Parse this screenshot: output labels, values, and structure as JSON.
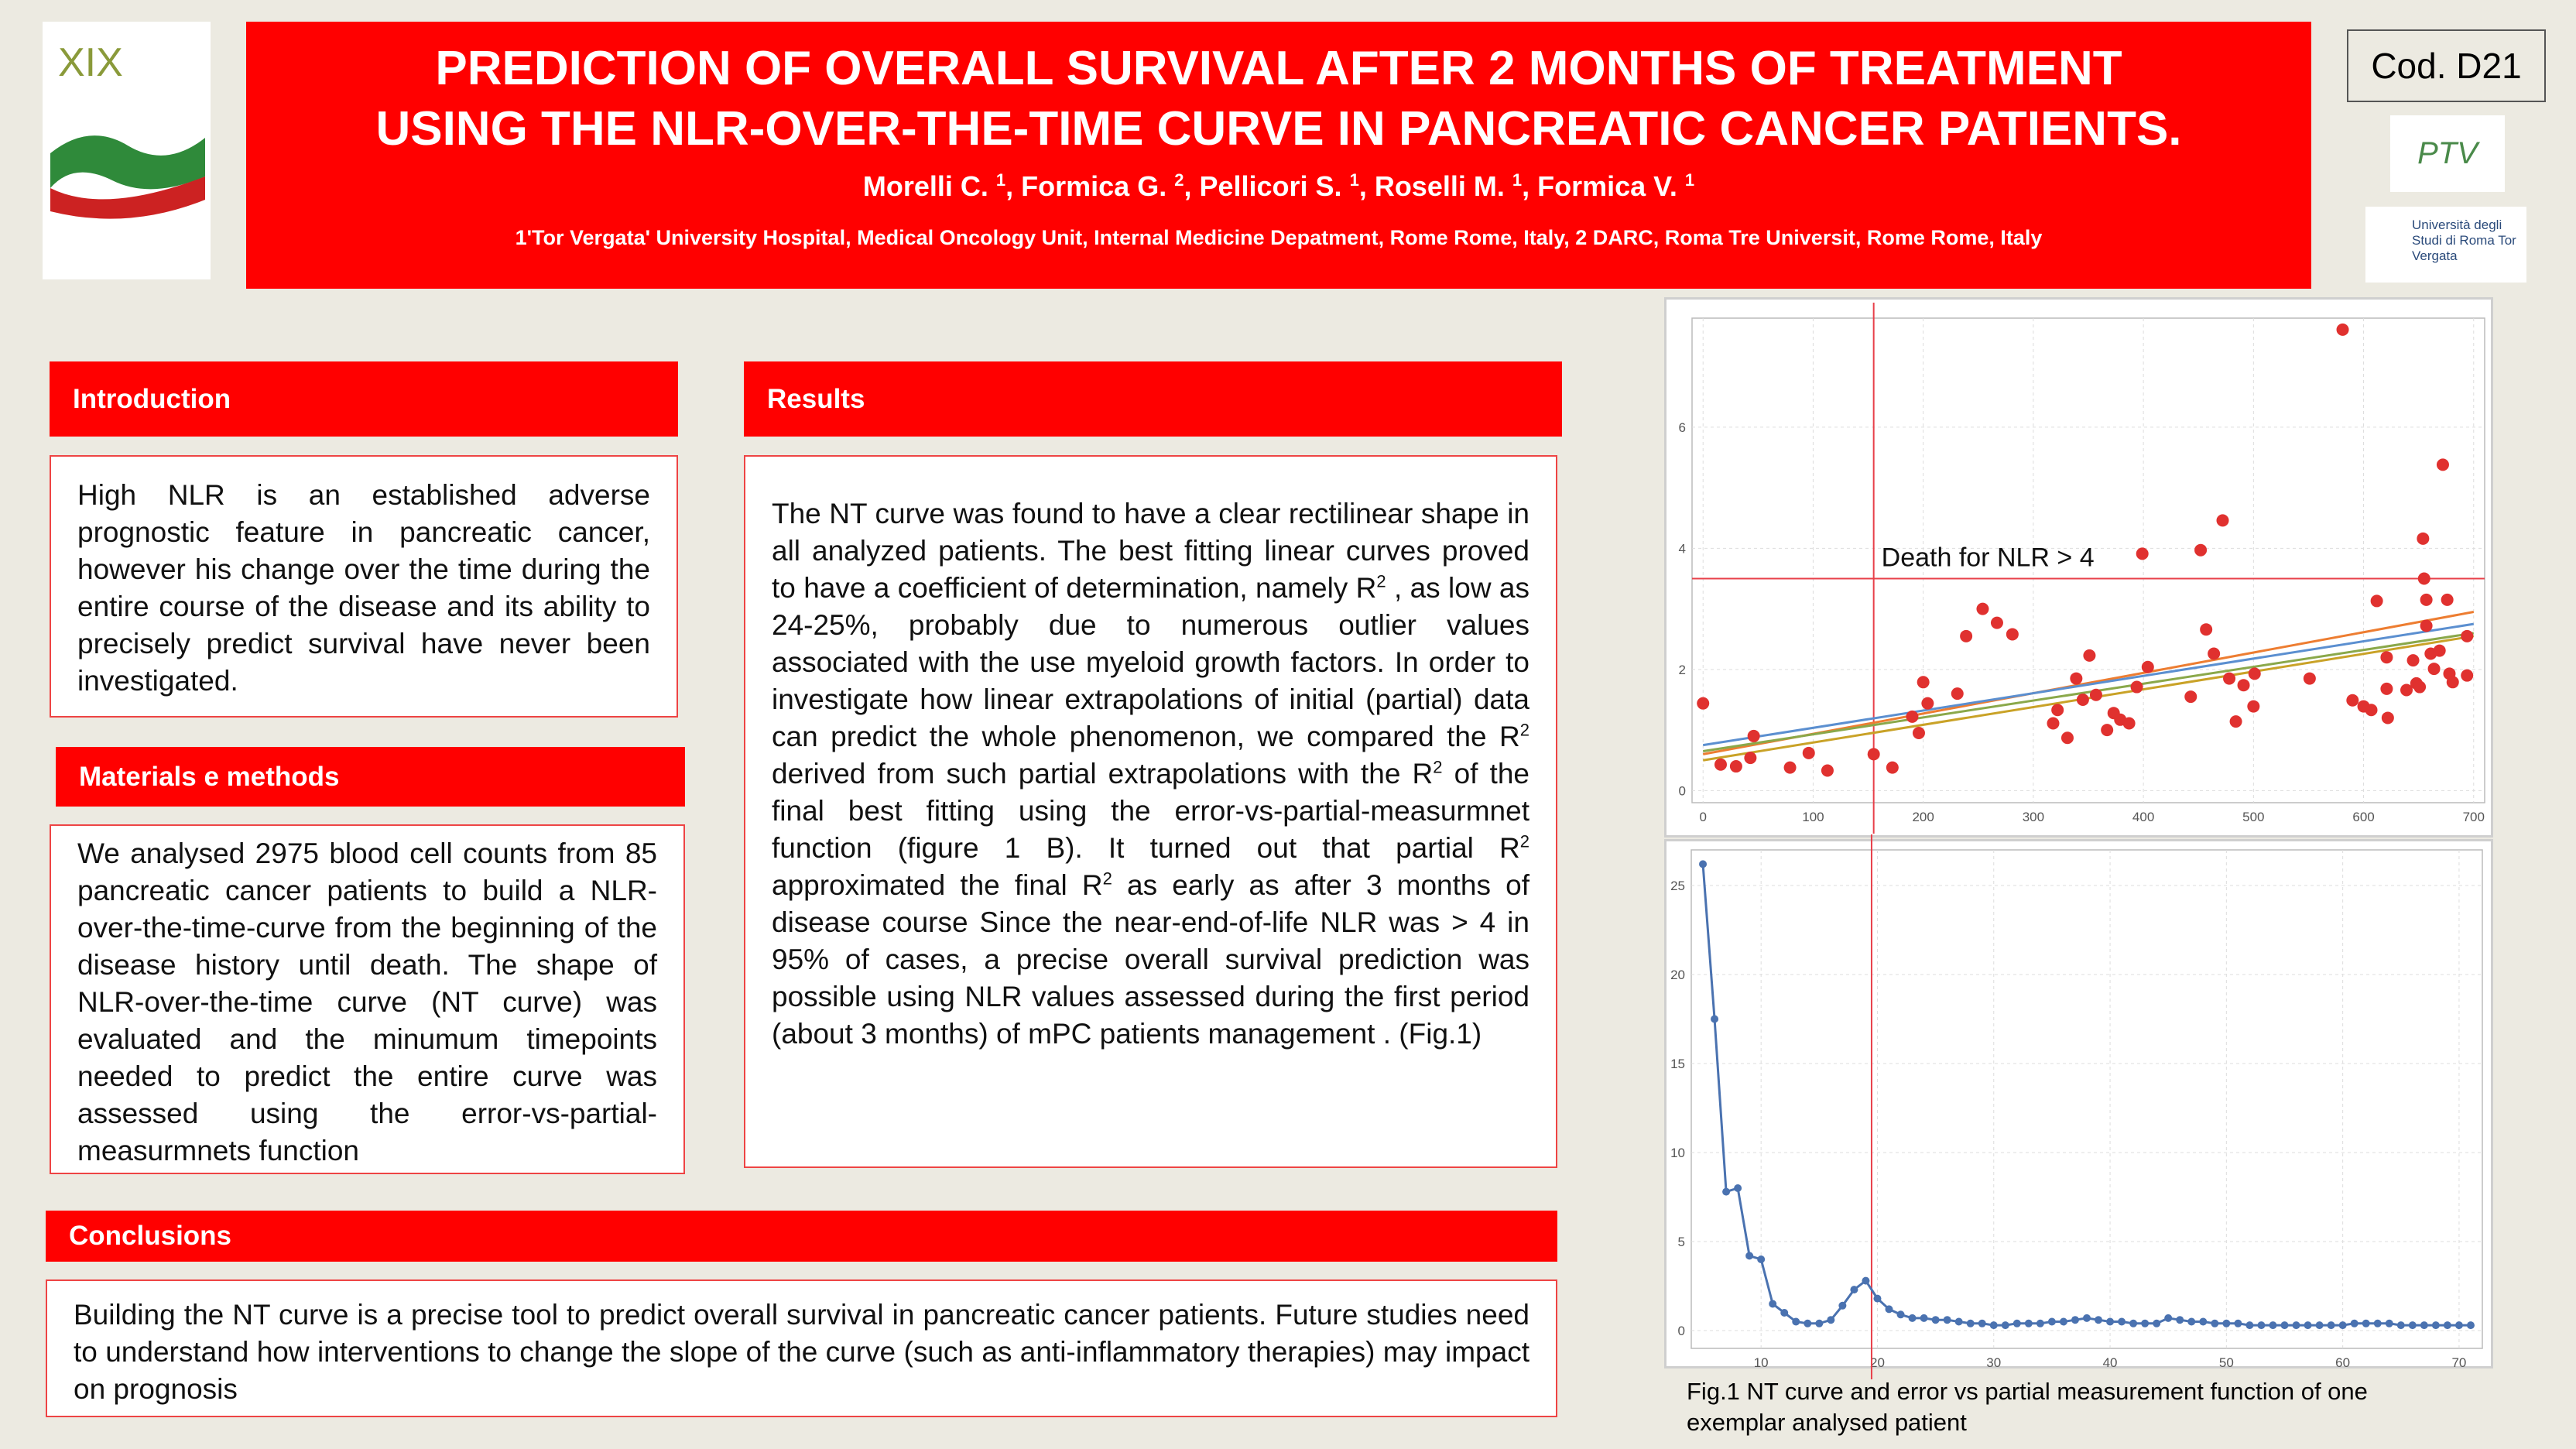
{
  "header": {
    "logo_text": "XIX",
    "title_lines": [
      "PREDICTION OF OVERALL SURVIVAL AFTER 2 MONTHS OF TREATMENT",
      "USING THE NLR-OVER-THE-TIME CURVE IN PANCREATIC CANCER PATIENTS."
    ],
    "authors": [
      {
        "text": "Morelli C. "
      },
      {
        "sup": "1"
      },
      {
        "text": ", Formica G. "
      },
      {
        "sup": "2"
      },
      {
        "text": ", Pellicori S. "
      },
      {
        "sup": "1"
      },
      {
        "text": ", Roselli M. "
      },
      {
        "sup": "1"
      },
      {
        "text": ", Formica V. "
      },
      {
        "sup": "1"
      }
    ],
    "affiliation": "1'Tor Vergata' University Hospital, Medical Oncology Unit, Internal Medicine Depatment, Rome Rome, Italy, 2 DARC, Roma Tre Universit, Rome Rome, Italy",
    "code": "Cod. D21",
    "ptv_logo": "PTV",
    "university_logo": "Università degli Studi di Roma Tor Vergata"
  },
  "sections": {
    "introduction": {
      "heading": "Introduction",
      "body": [
        {
          "text": "High NLR is an established adverse prognostic feature in pancreatic cancer, however his change over the time during the entire course of the disease and its ability to precisely predict survival have never been investigated."
        }
      ]
    },
    "materials": {
      "heading": "Materials e methods",
      "body": [
        {
          "text": "We analysed 2975 blood cell counts from 85 pancreatic cancer patients to build a NLR-over-the-time-curve from the beginning of the disease history until death. The shape of NLR-over-the-time curve (NT curve) was evaluated and the minumum timepoints needed to predict the entire curve was assessed using the error-vs-partial-measurmnets function"
        }
      ]
    },
    "results": {
      "heading": "Results",
      "body": [
        {
          "text": "The NT curve was found to have a clear rectilinear shape in all analyzed patients. The best fitting linear curves proved to have a coefficient of determination, namely R"
        },
        {
          "sup": "2"
        },
        {
          "text": " , as low as 24-25%, probably due to numerous outlier values associated with the use myeloid growth factors. In order to investigate how linear extrapolations of initial (partial) data can predict the whole phenomenon, we compared the R"
        },
        {
          "sup": "2"
        },
        {
          "text": " derived from such partial extrapolations with the R"
        },
        {
          "sup": "2"
        },
        {
          "text": " of the final best fitting using the error-vs-partial-measurmnet function (figure 1 B). It turned out that partial R"
        },
        {
          "sup": "2"
        },
        {
          "text": " approximated the final R"
        },
        {
          "sup": "2"
        },
        {
          "text": " as early as after 3 months of disease course Since the near-end-of-life NLR was > 4 in 95% of cases, a precise overall survival prediction was possible using NLR values assessed during the first period (about 3 months) of mPC patients management . (Fig.1)"
        }
      ]
    },
    "conclusions": {
      "heading": "Conclusions",
      "body": [
        {
          "text": "Building the NT curve is a precise tool to predict overall survival in pancreatic cancer patients. Future studies need to understand how interventions to change the slope of the curve (such as anti-inflammatory therapies) may impact on prognosis"
        }
      ]
    }
  },
  "caption": "Fig.1 NT curve and error vs partial measurement function of one exemplar analysed patient",
  "chart_data": [
    {
      "type": "scatter",
      "annotation": "Death for NLR > 4",
      "xlim": [
        -10,
        710
      ],
      "ylim": [
        -0.2,
        7.8
      ],
      "xticks": [
        0,
        100,
        200,
        300,
        400,
        500,
        600,
        700
      ],
      "yticks": [
        0,
        2,
        4,
        6
      ],
      "grid": true,
      "vline": 155,
      "hline": 3.5,
      "ref_color": "#e8404a",
      "series": [
        {
          "color": "#e0312f",
          "x": [
            0,
            16,
            30,
            43,
            46,
            79,
            96,
            113,
            155,
            172,
            190,
            196,
            200,
            204,
            231,
            239,
            254,
            267,
            281,
            318,
            322,
            331,
            339,
            345,
            351,
            357,
            367,
            373,
            379,
            387,
            394,
            399,
            404,
            443,
            452,
            457,
            464,
            472,
            478,
            484,
            491,
            500,
            501,
            551,
            581,
            590,
            600,
            607,
            612,
            621,
            621,
            622,
            639,
            645,
            648,
            651,
            654,
            655,
            657,
            657,
            661,
            664,
            669,
            672,
            676,
            678,
            681,
            694,
            694
          ],
          "values": [
            1.44,
            0.43,
            0.4,
            0.54,
            0.9,
            0.38,
            0.62,
            0.33,
            0.6,
            0.38,
            1.22,
            0.95,
            1.79,
            1.44,
            1.6,
            2.55,
            3.0,
            2.77,
            2.58,
            1.11,
            1.33,
            0.87,
            1.85,
            1.5,
            2.23,
            1.58,
            1.0,
            1.28,
            1.17,
            1.11,
            1.71,
            3.91,
            2.04,
            1.55,
            3.97,
            2.66,
            2.26,
            4.46,
            1.85,
            1.14,
            1.74,
            1.39,
            1.93,
            1.85,
            7.61,
            1.49,
            1.39,
            1.33,
            3.13,
            2.2,
            1.68,
            1.2,
            1.66,
            2.15,
            1.77,
            1.71,
            4.16,
            3.5,
            3.15,
            2.72,
            2.26,
            2.01,
            2.31,
            5.38,
            3.15,
            1.93,
            1.79,
            1.9,
            2.55
          ]
        }
      ],
      "fits": [
        {
          "color": "#ed7d31",
          "x": [
            0,
            700
          ],
          "values": [
            0.6,
            2.95
          ]
        },
        {
          "color": "#5b8fd0",
          "x": [
            0,
            700
          ],
          "values": [
            0.75,
            2.75
          ]
        },
        {
          "color": "#8aa84a",
          "x": [
            0,
            700
          ],
          "values": [
            0.65,
            2.6
          ]
        },
        {
          "color": "#c9a227",
          "x": [
            0,
            700
          ],
          "values": [
            0.5,
            2.55
          ]
        }
      ]
    },
    {
      "type": "line",
      "xlim": [
        4,
        72
      ],
      "ylim": [
        -1,
        27
      ],
      "xticks": [
        10,
        20,
        30,
        40,
        50,
        60,
        70
      ],
      "yticks": [
        0,
        5,
        10,
        15,
        20,
        25
      ],
      "grid": true,
      "vline": 19.5,
      "ref_color": "#e8404a",
      "series": [
        {
          "color": "#4a72b0",
          "x": [
            5,
            6,
            7,
            8,
            9,
            10,
            11,
            12,
            13,
            14,
            15,
            16,
            17,
            18,
            19,
            20,
            21,
            22,
            23,
            24,
            25,
            26,
            27,
            28,
            29,
            30,
            31,
            32,
            33,
            34,
            35,
            36,
            37,
            38,
            39,
            40,
            41,
            42,
            43,
            44,
            45,
            46,
            47,
            48,
            49,
            50,
            51,
            52,
            53,
            54,
            55,
            56,
            57,
            58,
            59,
            60,
            61,
            62,
            63,
            64,
            65,
            66,
            67,
            68,
            69,
            70,
            71
          ],
          "values": [
            26.2,
            17.5,
            7.8,
            8.0,
            4.2,
            4.0,
            1.5,
            1.0,
            0.5,
            0.4,
            0.4,
            0.6,
            1.4,
            2.3,
            2.8,
            1.8,
            1.2,
            0.9,
            0.7,
            0.7,
            0.6,
            0.6,
            0.5,
            0.4,
            0.4,
            0.3,
            0.3,
            0.4,
            0.4,
            0.4,
            0.5,
            0.5,
            0.6,
            0.7,
            0.6,
            0.5,
            0.5,
            0.4,
            0.4,
            0.4,
            0.7,
            0.6,
            0.5,
            0.5,
            0.4,
            0.4,
            0.4,
            0.3,
            0.3,
            0.3,
            0.3,
            0.3,
            0.3,
            0.3,
            0.3,
            0.3,
            0.4,
            0.4,
            0.4,
            0.4,
            0.3,
            0.3,
            0.3,
            0.3,
            0.3,
            0.3,
            0.3
          ]
        }
      ]
    }
  ]
}
